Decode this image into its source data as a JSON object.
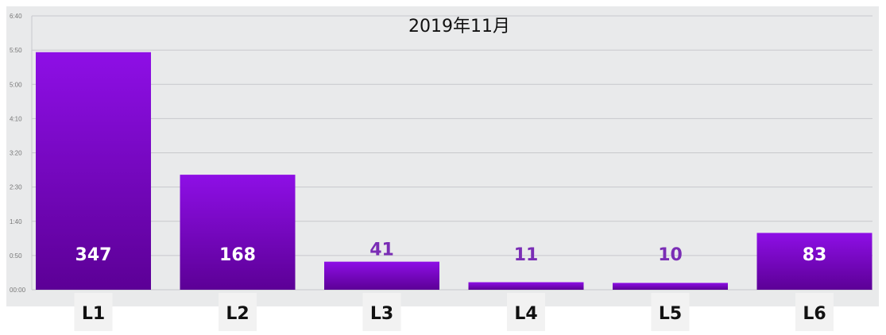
{
  "chart_data": {
    "type": "bar",
    "title": "2019年11月",
    "xlabel": "",
    "ylabel": "",
    "categories": [
      "L1",
      "L2",
      "L3",
      "L4",
      "L5",
      "L6"
    ],
    "values": [
      347,
      168,
      41,
      11,
      10,
      83
    ],
    "value_labels": [
      "347",
      "168",
      "41",
      "11",
      "10",
      "83"
    ],
    "y_ticks": [
      "00:00",
      "0:50",
      "1:40",
      "2:30",
      "3:20",
      "4:10",
      "5:00",
      "5:50",
      "6:40"
    ],
    "ylim": [
      0,
      400
    ],
    "grid": true,
    "legend": "none",
    "colors": {
      "bar_top": "#8e0fe6",
      "bar_bottom": "#5c0096",
      "plot_background": "#e9eaeb",
      "gridline": "#c8c8cc",
      "category_box": "#f2f2f2",
      "value_label_outside": "#7a2db5"
    }
  }
}
